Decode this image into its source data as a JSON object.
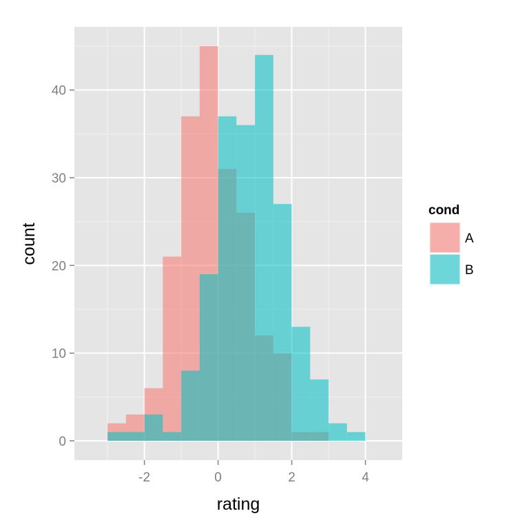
{
  "chart_data": {
    "type": "bar",
    "subtype": "overlapping histogram",
    "xlabel": "rating",
    "ylabel": "count",
    "xlim": [
      -3.9,
      5.0
    ],
    "ylim": [
      -2.2,
      47.2
    ],
    "x_ticks": [
      -2,
      0,
      2,
      4
    ],
    "x_tick_labels": [
      "-2",
      "0",
      "2",
      "4"
    ],
    "y_ticks": [
      0,
      10,
      20,
      30,
      40
    ],
    "y_tick_labels": [
      "0",
      "10",
      "20",
      "30",
      "40"
    ],
    "grid": true,
    "bin_edges": [
      -3,
      -2.5,
      -2,
      -1.5,
      -1,
      -0.5,
      0,
      0.5,
      1,
      1.5,
      2,
      2.5,
      3,
      3.5,
      4
    ],
    "legend": {
      "title": "cond",
      "position": "right"
    },
    "series": [
      {
        "name": "A",
        "color": "#F8766D",
        "values": [
          2,
          3,
          6,
          21,
          37,
          45,
          31,
          26,
          12,
          10,
          1,
          1,
          0,
          0
        ]
      },
      {
        "name": "B",
        "color": "#00BFC4",
        "values": [
          1,
          1,
          3,
          1,
          8,
          19,
          37,
          36,
          44,
          27,
          13,
          7,
          2,
          1
        ]
      }
    ]
  }
}
